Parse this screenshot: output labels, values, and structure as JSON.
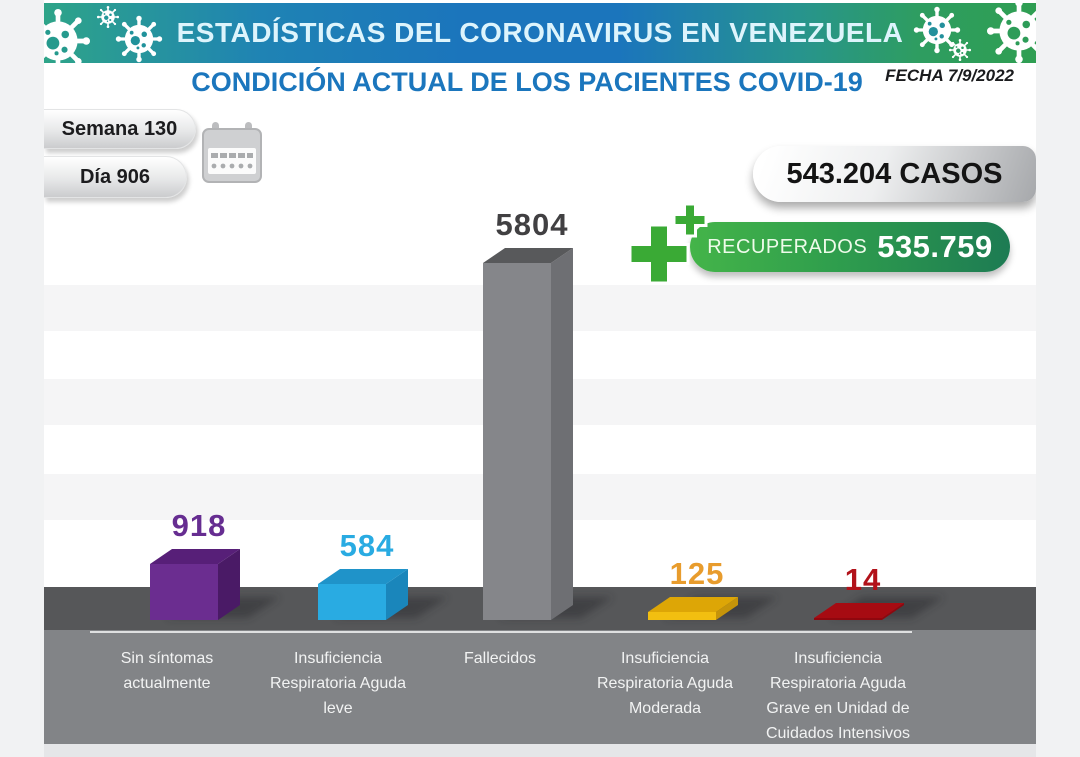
{
  "banner": {
    "title": "ESTADÍSTICAS DEL CORONAVIRUS EN VENEZUELA"
  },
  "header": {
    "subtitle": "CONDICIÓN ACTUAL DE LOS PACIENTES COVID-19",
    "date": "FECHA 7/9/2022"
  },
  "period": {
    "week": "Semana 130",
    "day": "Día 906"
  },
  "totals": {
    "cases": "543.204 CASOS",
    "recovered_label": "RECUPERADOS",
    "recovered_value": "535.759"
  },
  "icons": {
    "virus": "virus-icon",
    "calendar": "calendar-icon",
    "medical_cross": "medical-cross-icon"
  },
  "colors": {
    "banner_gradient": [
      "#2ea488",
      "#1b75bc",
      "#2f9e52"
    ],
    "banner_title_text": "#ddf4fc",
    "subtitle_text": "#1b76bd",
    "stripe": "#f5f5f6",
    "floor_band": "#565759",
    "label_band": "#828487",
    "cases_silver": "#a6a8ab",
    "recovered_green": "#2f9e4d",
    "cross_green": "#3aaa35"
  },
  "chart_data": {
    "type": "bar",
    "title": "CONDICIÓN ACTUAL DE LOS PACIENTES COVID-19",
    "categories": [
      "Sin síntomas actualmente",
      "Insuficiencia Respiratoria Aguda leve",
      "Fallecidos",
      "Insuficiencia Respiratoria Aguda Moderada",
      "Insuficiencia Respiratoria Aguda Grave en Unidad de Cuidados Intensivos"
    ],
    "category_lines": [
      [
        "Sin síntomas",
        "actualmente"
      ],
      [
        "Insuficiencia",
        "Respiratoria Aguda",
        "leve"
      ],
      [
        "Fallecidos"
      ],
      [
        "Insuficiencia",
        "Respiratoria Aguda",
        "Moderada"
      ],
      [
        "Insuficiencia",
        "Respiratoria Aguda",
        "Grave en Unidad de",
        "Cuidados Intensivos"
      ]
    ],
    "values": [
      918,
      584,
      5804,
      125,
      14
    ],
    "value_labels": [
      "918",
      "584",
      "5804",
      "125",
      "14"
    ],
    "series_colors": [
      {
        "front": "#6b2d90",
        "top": "#571f78",
        "side": "#4a1a66",
        "label": "#662d91"
      },
      {
        "front": "#29abe2",
        "top": "#1f93c9",
        "side": "#1a86bb",
        "label": "#29abe2"
      },
      {
        "front": "#85868a",
        "top": "#58595b",
        "side": "#6e6f73",
        "label": "#414042"
      },
      {
        "front": "#f2bf10",
        "top": "#dda606",
        "side": "#c5940a",
        "label": "#e89c2d"
      },
      {
        "front": "#8f070e",
        "top": "#a60b12",
        "side": "#8f070e",
        "label": "#b2121a"
      }
    ],
    "ylim": [
      0,
      5804
    ],
    "legend": false,
    "grid": "horizontal-stripes",
    "style": "3d-boxes-on-dark-floor"
  }
}
